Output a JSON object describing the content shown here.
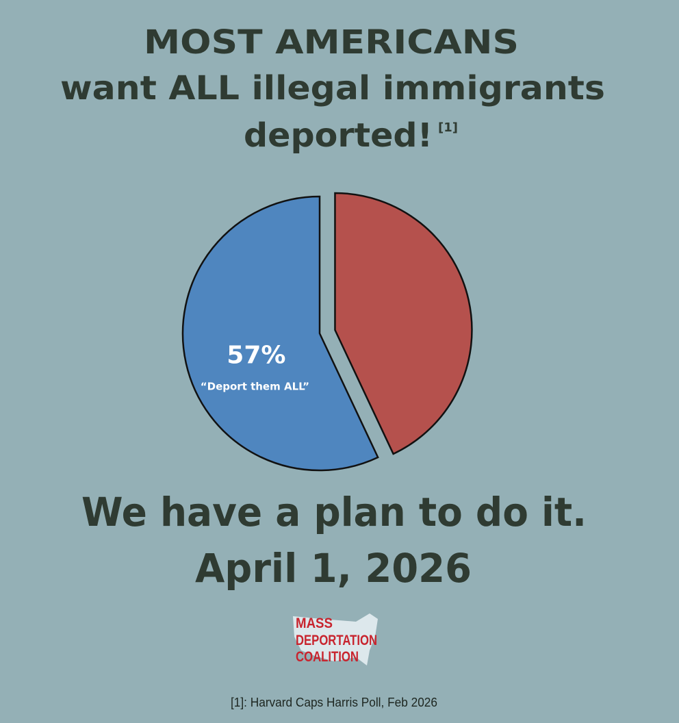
{
  "chart_data": {
    "type": "pie",
    "title_lines": [
      "MOST AMERICANS",
      "want ALL illegal immigrants",
      "deported!"
    ],
    "footnote_marker": "[1]",
    "categories": [
      "“Deport them ALL”",
      null
    ],
    "values": [
      57,
      43
    ],
    "value_labels": [
      "57%",
      null
    ],
    "colors": [
      "#4f86bf",
      "#b5514d"
    ],
    "exploded": [
      false,
      true
    ]
  },
  "tagline": "We have a plan to do it.",
  "date": "April 1, 2026",
  "logo": [
    "MASS",
    "DEPORTATION",
    "COALITION"
  ],
  "footnote": "[1]: Harvard Caps Harris Poll, Feb 2026"
}
